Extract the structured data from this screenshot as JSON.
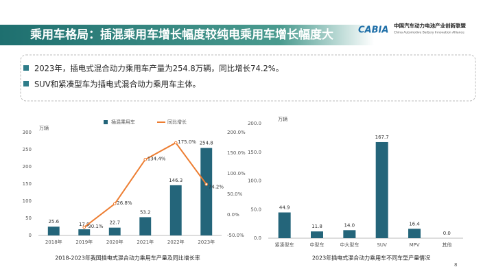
{
  "header": {
    "title": "乘用车格局：插混乘用车增长幅度较纯电乘用车增长幅度大",
    "logo": "CABIA",
    "org_cn": "中国汽车动力电池产业创新联盟",
    "org_en": "China Automotive Battery Innovation Alliance"
  },
  "bullets": [
    "2023年，插电式混合动力乘用车产量为254.8万辆，同比增长74.2%。",
    "SUV和紧凑型车为插电式混合动力乘用车主体。"
  ],
  "page_number": "8",
  "chart_data": [
    {
      "type": "bar",
      "caption": "2018-2023年我国插电式混合动力乘用车产量及同比增长率",
      "y_unit": "万辆",
      "categories": [
        "2018年",
        "2019年",
        "2020年",
        "2021年",
        "2022年",
        "2023年"
      ],
      "series": [
        {
          "name": "插混乘用车",
          "type": "bar",
          "color": "#24657a",
          "values": [
            25.6,
            17.9,
            22.7,
            53.2,
            146.3,
            254.8
          ]
        },
        {
          "name": "同比增长",
          "type": "line",
          "axis": "y2",
          "color": "#ed7d31",
          "values": [
            null,
            -30.1,
            26.8,
            134.4,
            175.0,
            74.2
          ],
          "value_labels": [
            null,
            "-30.1%",
            "26.8%",
            "134.4%",
            "175.0%",
            "74.2%"
          ]
        }
      ],
      "ylim": [
        0,
        300
      ],
      "yticks": [
        0,
        50,
        100,
        150,
        200,
        250,
        300
      ],
      "y2lim": [
        -50,
        200
      ],
      "y2ticks": [
        {
          "value": -50,
          "label": "-50.0%"
        },
        {
          "value": 0,
          "label": "0.0%"
        },
        {
          "value": 50,
          "label": "50.0%"
        },
        {
          "value": 100,
          "label": "100.0%"
        },
        {
          "value": 150,
          "label": "150.0%"
        },
        {
          "value": 200,
          "label": "200.0%"
        }
      ],
      "legend": "top"
    },
    {
      "type": "bar",
      "caption": "2023年插电式混合动力乘用车不同车型产量情况",
      "y_unit": "万辆",
      "categories": [
        "紧凑型车",
        "中型车",
        "中大型车",
        "SUV",
        "MPV",
        "其他"
      ],
      "values": [
        44.9,
        11.8,
        14.0,
        167.7,
        16.4,
        0.0
      ],
      "value_labels": [
        "44.9",
        "11.8",
        "14.0",
        "167.7",
        "16.4",
        "0.0"
      ],
      "color": "#24657a",
      "ylim": [
        0,
        200
      ],
      "yticks": [
        {
          "value": 0,
          "label": "0.0"
        },
        {
          "value": 50,
          "label": "50.0"
        },
        {
          "value": 100,
          "label": "100.0"
        },
        {
          "value": 150,
          "label": "150.0"
        },
        {
          "value": 200,
          "label": "200.0"
        }
      ]
    }
  ]
}
